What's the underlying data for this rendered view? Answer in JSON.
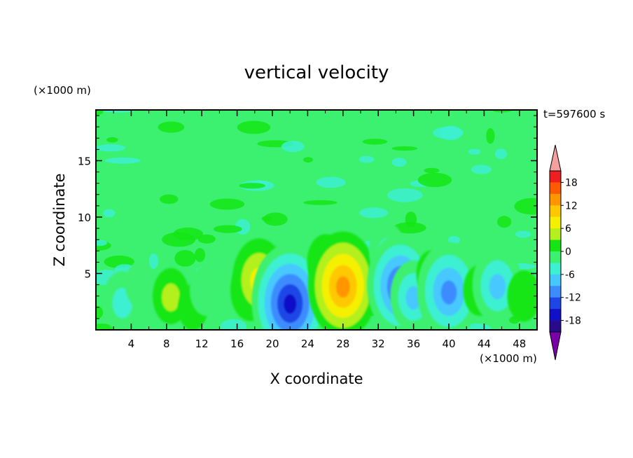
{
  "chart_data": {
    "type": "heatmap",
    "title": "vertical velocity",
    "xlabel": "X coordinate",
    "ylabel": "Z coordinate",
    "x_unit": "(×1000 m)",
    "y_unit": "(×1000 m)",
    "time_label": "t=597600 s",
    "xlim": [
      0,
      50
    ],
    "ylim": [
      0,
      19.5
    ],
    "x_ticks": [
      4,
      8,
      12,
      16,
      20,
      24,
      28,
      32,
      36,
      40,
      44,
      48
    ],
    "y_ticks": [
      5,
      10,
      15
    ],
    "colorbar": {
      "levels": [
        -21,
        -18,
        -15,
        -12,
        -9,
        -6,
        -3,
        0,
        3,
        6,
        9,
        12,
        15,
        18,
        21
      ],
      "tick_labels": [
        "18",
        "12",
        "6",
        "0",
        "-6",
        "-12",
        "-18"
      ],
      "colors": [
        "#7a00a8",
        "#2a0a8c",
        "#1010c8",
        "#1e46e6",
        "#3c8cff",
        "#46c8ff",
        "#3cf0d2",
        "#3cf070",
        "#14e614",
        "#b4f01e",
        "#f5f000",
        "#ffc800",
        "#ff9600",
        "#ff5a00",
        "#f01e1e",
        "#f5a0a0"
      ],
      "extend": "both"
    },
    "cells": [
      {
        "x": 3,
        "z": 2.5,
        "w": -6
      },
      {
        "x": 5,
        "z": 4.0,
        "w": -3
      },
      {
        "x": 8.5,
        "z": 3.0,
        "w": 5
      },
      {
        "x": 11,
        "z": 2.0,
        "w": 3
      },
      {
        "x": 12.5,
        "z": 3.5,
        "w": -4
      },
      {
        "x": 15,
        "z": 4.5,
        "w": -2
      },
      {
        "x": 17.5,
        "z": 3.5,
        "w": 6
      },
      {
        "x": 18.5,
        "z": 4.5,
        "w": 10
      },
      {
        "x": 21,
        "z": 3.5,
        "w": -10
      },
      {
        "x": 22,
        "z": 2.5,
        "w": -17
      },
      {
        "x": 26,
        "z": 6.0,
        "w": 5
      },
      {
        "x": 28,
        "z": 4.0,
        "w": 15
      },
      {
        "x": 33,
        "z": 7.0,
        "w": -5
      },
      {
        "x": 34.5,
        "z": 4.0,
        "w": -14
      },
      {
        "x": 36,
        "z": 3.0,
        "w": -8
      },
      {
        "x": 38,
        "z": 5.0,
        "w": 3
      },
      {
        "x": 40,
        "z": 3.5,
        "w": -13
      },
      {
        "x": 43.5,
        "z": 3.5,
        "w": 4
      },
      {
        "x": 45.5,
        "z": 4.0,
        "w": -9
      },
      {
        "x": 48.5,
        "z": 3.0,
        "w": 4
      }
    ]
  }
}
